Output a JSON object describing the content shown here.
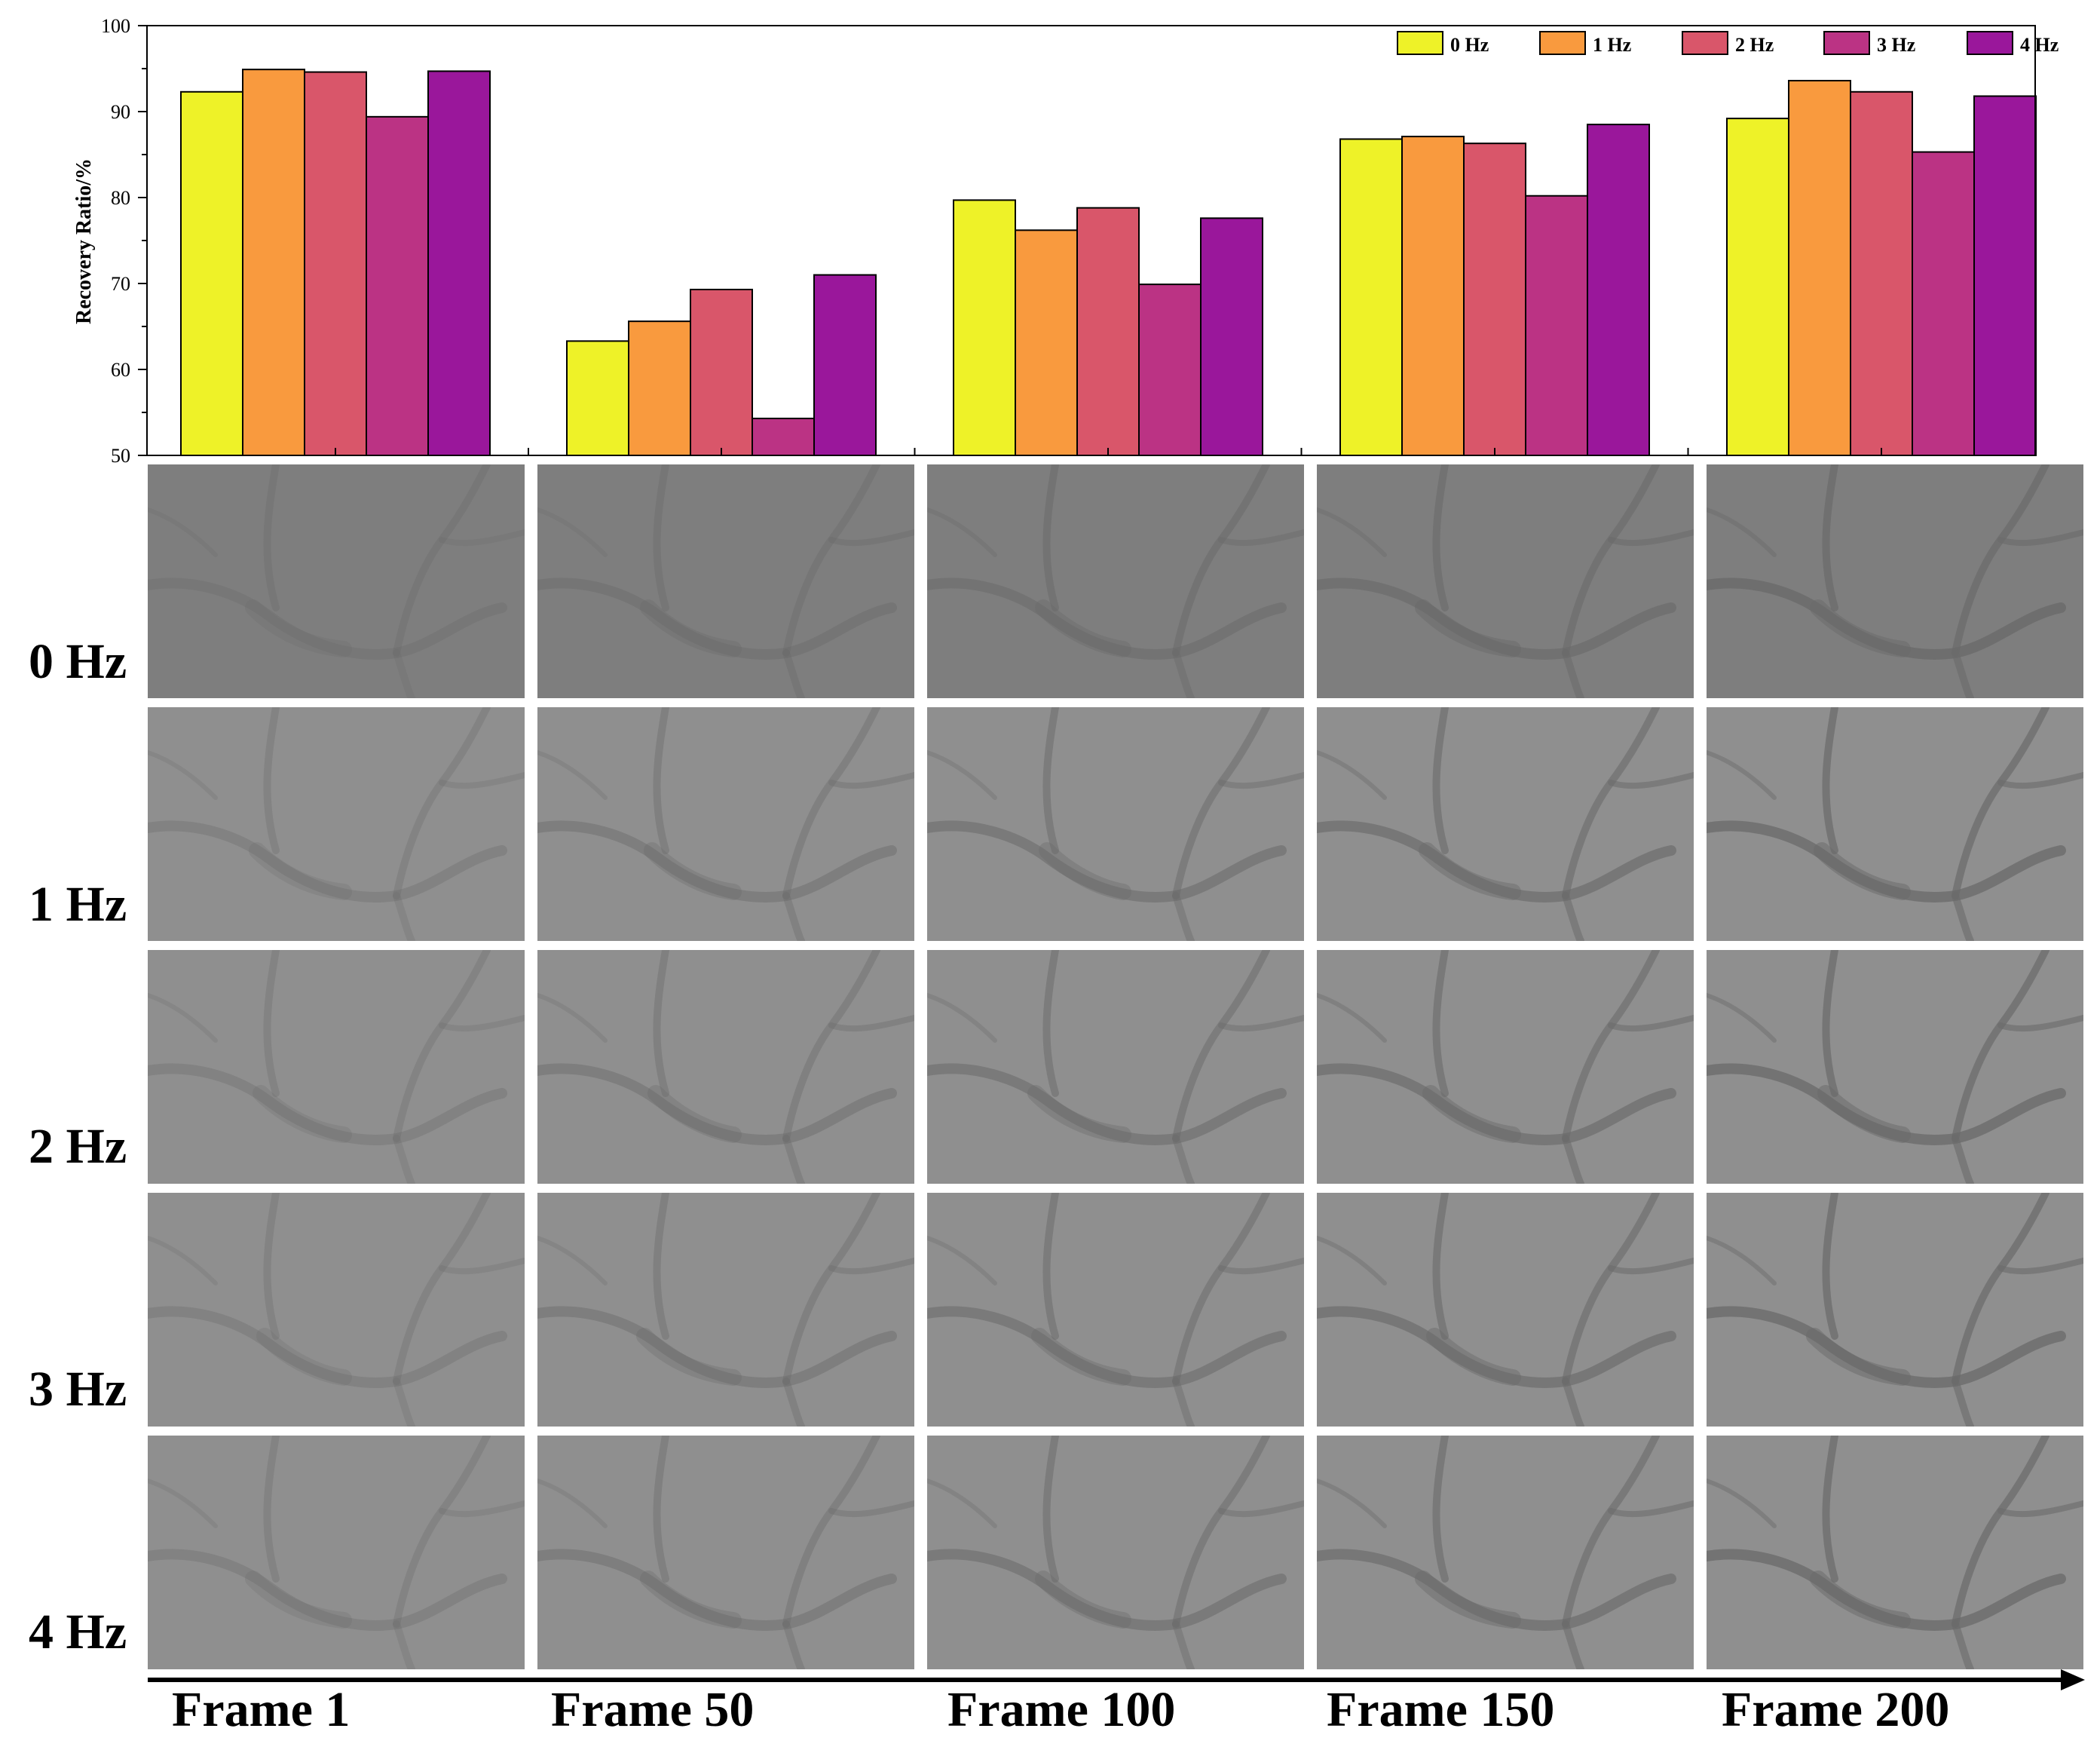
{
  "chart_data": {
    "type": "bar",
    "categories": [
      "Frame 1",
      "Frame 50",
      "Frame 100",
      "Frame 150",
      "Frame 200"
    ],
    "series": [
      {
        "name": "0 Hz",
        "color": "#eef228",
        "values": [
          92.3,
          63.3,
          79.7,
          86.8,
          89.2
        ]
      },
      {
        "name": "1 Hz",
        "color": "#f99a3e",
        "values": [
          94.9,
          65.6,
          76.2,
          87.1,
          93.6
        ]
      },
      {
        "name": "2 Hz",
        "color": "#d9566a",
        "values": [
          94.6,
          69.3,
          78.8,
          86.3,
          92.3
        ]
      },
      {
        "name": "3 Hz",
        "color": "#bb3384",
        "values": [
          89.4,
          54.3,
          69.9,
          80.2,
          85.3
        ]
      },
      {
        "name": "4 Hz",
        "color": "#9a179b",
        "values": [
          94.7,
          71.0,
          77.6,
          88.5,
          91.8
        ]
      }
    ],
    "xlabel": "",
    "ylabel": "Recovery Ratio/%",
    "ylim": [
      50,
      100
    ],
    "yticks": [
      "50",
      "60",
      "70",
      "80",
      "90",
      "100"
    ],
    "legend_position": "top-right",
    "grid": false
  },
  "image_grid": {
    "row_labels": [
      "0 Hz",
      "1 Hz",
      "2 Hz",
      "3 Hz",
      "4 Hz"
    ],
    "column_labels": [
      "Frame 1",
      "Frame 50",
      "Frame 100",
      "Frame 150",
      "Frame 200"
    ],
    "row_background_colors": [
      "#7e7e7e",
      "#8f8f8f",
      "#8f8f8f",
      "#8f8f8f",
      "#8f8f8f"
    ],
    "pore_color": "#6a6a6a"
  }
}
